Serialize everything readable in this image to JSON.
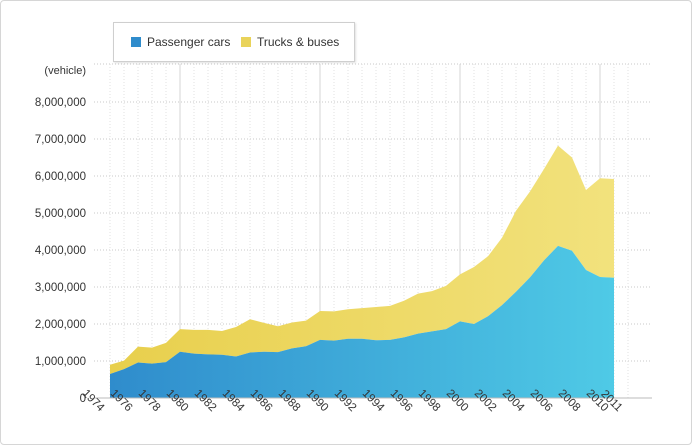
{
  "chart_data": {
    "type": "area",
    "stacked": true,
    "ylabel": "(vehicle)",
    "ylim": [
      0,
      8000000
    ],
    "y_ticks": [
      "0",
      "1,000,000",
      "2,000,000",
      "3,000,000",
      "4,000,000",
      "5,000,000",
      "6,000,000",
      "7,000,000",
      "8,000,000"
    ],
    "x_tick_labels": [
      "1974",
      "1976",
      "1978",
      "1980",
      "1982",
      "1984",
      "1986",
      "1988",
      "1990",
      "1992",
      "1994",
      "1996",
      "1998",
      "2000",
      "2002",
      "2004",
      "2006",
      "2008",
      "2010",
      "2011"
    ],
    "x": [
      1975,
      1976,
      1977,
      1978,
      1979,
      1980,
      1981,
      1982,
      1983,
      1984,
      1985,
      1986,
      1987,
      1988,
      1989,
      1990,
      1991,
      1992,
      1993,
      1994,
      1995,
      1996,
      1997,
      1998,
      1999,
      2000,
      2001,
      2002,
      2003,
      2004,
      2005,
      2006,
      2007,
      2008,
      2009,
      2010,
      2011
    ],
    "grid": true,
    "legend_position": "top-left",
    "series": [
      {
        "name": "Passenger cars",
        "color_start": "#2f8ccc",
        "color_end": "#4fcae6",
        "values": [
          650000,
          780000,
          960000,
          930000,
          970000,
          1250000,
          1200000,
          1180000,
          1170000,
          1120000,
          1230000,
          1250000,
          1240000,
          1340000,
          1400000,
          1570000,
          1550000,
          1600000,
          1600000,
          1560000,
          1570000,
          1640000,
          1740000,
          1800000,
          1860000,
          2070000,
          2000000,
          2210000,
          2510000,
          2870000,
          3260000,
          3720000,
          4110000,
          3980000,
          3460000,
          3270000,
          3250000
        ]
      },
      {
        "name": "Trucks & buses",
        "color": "#f2e27d",
        "values": [
          250000,
          230000,
          430000,
          430000,
          520000,
          610000,
          640000,
          660000,
          640000,
          800000,
          900000,
          780000,
          700000,
          700000,
          690000,
          780000,
          790000,
          800000,
          830000,
          900000,
          920000,
          990000,
          1080000,
          1090000,
          1170000,
          1270000,
          1540000,
          1620000,
          1820000,
          2190000,
          2320000,
          2470000,
          2710000,
          2520000,
          2160000,
          2670000,
          2670000
        ]
      }
    ]
  }
}
